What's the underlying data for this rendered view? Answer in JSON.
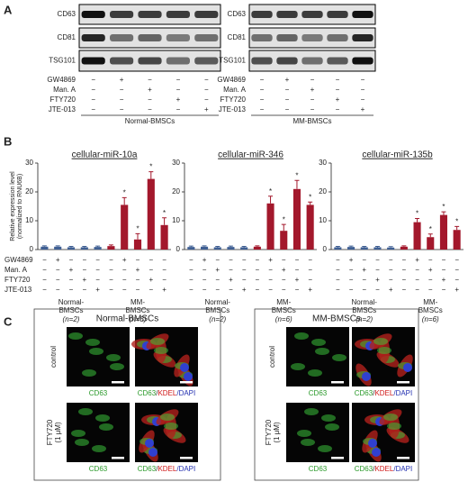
{
  "panel_labels": [
    "A",
    "B",
    "C"
  ],
  "panel_a": {
    "blots": [
      {
        "group": "Normal-BMSCs",
        "proteins": [
          "CD63",
          "CD81",
          "TSG101"
        ]
      },
      {
        "group": "MM-BMSCs",
        "proteins": [
          "CD63",
          "CD81",
          "TSG101"
        ]
      }
    ],
    "treatments": [
      {
        "name": "GW4869",
        "signs": [
          "−",
          "+",
          "−",
          "−",
          "−"
        ]
      },
      {
        "name": "Man. A",
        "signs": [
          "−",
          "−",
          "+",
          "−",
          "−"
        ]
      },
      {
        "name": "FTY720",
        "signs": [
          "−",
          "−",
          "−",
          "+",
          "−"
        ]
      },
      {
        "name": "JTE-013",
        "signs": [
          "−",
          "−",
          "−",
          "−",
          "+"
        ]
      }
    ]
  },
  "chart_data": [
    {
      "type": "bar",
      "title": "cellular-miR-10a",
      "y_label": [
        "Relative expression level",
        "(normalized to RNU6B)"
      ],
      "values": [
        1,
        1,
        0.8,
        0.8,
        0.9,
        1.2,
        15.5,
        3.5,
        24.5,
        8.5
      ],
      "errors": [
        0.3,
        0.3,
        0.3,
        0.3,
        0.3,
        0.4,
        2.5,
        2,
        2.5,
        2.5
      ],
      "colors": [
        "#3f5f93",
        "#3f5f93",
        "#3f5f93",
        "#3f5f93",
        "#3f5f93",
        "#a3182c",
        "#a3182c",
        "#a3182c",
        "#a3182c",
        "#a3182c"
      ],
      "significance": [
        null,
        null,
        null,
        null,
        null,
        null,
        "*",
        "*",
        "*",
        "*"
      ],
      "ylim": [
        0,
        30
      ],
      "yticks": [
        0,
        10,
        20,
        30
      ]
    },
    {
      "type": "bar",
      "title": "cellular-miR-346",
      "values": [
        0.9,
        1,
        0.8,
        0.9,
        0.8,
        1,
        16,
        6.5,
        21,
        15.5
      ],
      "errors": [
        0.3,
        0.3,
        0.3,
        0.3,
        0.3,
        0.3,
        2.5,
        2.2,
        3,
        1
      ],
      "colors": [
        "#3f5f93",
        "#3f5f93",
        "#3f5f93",
        "#3f5f93",
        "#3f5f93",
        "#a3182c",
        "#a3182c",
        "#a3182c",
        "#a3182c",
        "#a3182c"
      ],
      "significance": [
        null,
        null,
        null,
        null,
        null,
        null,
        "*",
        "*",
        "*",
        "*"
      ],
      "ylim": [
        0,
        30
      ],
      "yticks": [
        0,
        10,
        20,
        30
      ]
    },
    {
      "type": "bar",
      "title": "cellular-miR-135b",
      "values": [
        0.8,
        0.9,
        0.8,
        0.8,
        0.7,
        1,
        9.5,
        4.3,
        12,
        6.8
      ],
      "errors": [
        0.3,
        0.3,
        0.3,
        0.3,
        0.3,
        0.3,
        1.3,
        1.1,
        1.1,
        1.2
      ],
      "colors": [
        "#3f5f93",
        "#3f5f93",
        "#3f5f93",
        "#3f5f93",
        "#3f5f93",
        "#a3182c",
        "#a3182c",
        "#a3182c",
        "#a3182c",
        "#a3182c"
      ],
      "significance": [
        null,
        null,
        null,
        null,
        null,
        null,
        "*",
        "*",
        "*",
        "*"
      ],
      "ylim": [
        0,
        30
      ],
      "yticks": [
        0,
        10,
        20,
        30
      ]
    }
  ],
  "panel_b_table": {
    "rows": [
      {
        "name": "GW4869",
        "signs": [
          "−",
          "+",
          "−",
          "−",
          "−",
          "−",
          "+",
          "−",
          "−",
          "−"
        ]
      },
      {
        "name": "Man. A",
        "signs": [
          "−",
          "−",
          "+",
          "−",
          "−",
          "−",
          "−",
          "+",
          "−",
          "−"
        ]
      },
      {
        "name": "FTY720",
        "signs": [
          "−",
          "−",
          "−",
          "+",
          "−",
          "−",
          "−",
          "−",
          "+",
          "−"
        ]
      },
      {
        "name": "JTE-013",
        "signs": [
          "−",
          "−",
          "−",
          "−",
          "+",
          "−",
          "−",
          "−",
          "−",
          "+"
        ]
      }
    ],
    "groups": [
      {
        "lines": [
          "Normal-",
          "BMSCs"
        ],
        "n": "(n=2)"
      },
      {
        "lines": [
          "MM-",
          "BMSCs"
        ],
        "n": "(n=6)"
      }
    ]
  },
  "panel_c": {
    "groups": [
      "Normal-BMSCs",
      "MM-BMSCs"
    ],
    "rows": [
      [
        "control"
      ],
      [
        "FTY720",
        "(1 μM)"
      ]
    ],
    "caption_single": "CD63",
    "caption_merge": [
      "CD63",
      "/",
      "KDEL",
      "/DAPI"
    ]
  }
}
